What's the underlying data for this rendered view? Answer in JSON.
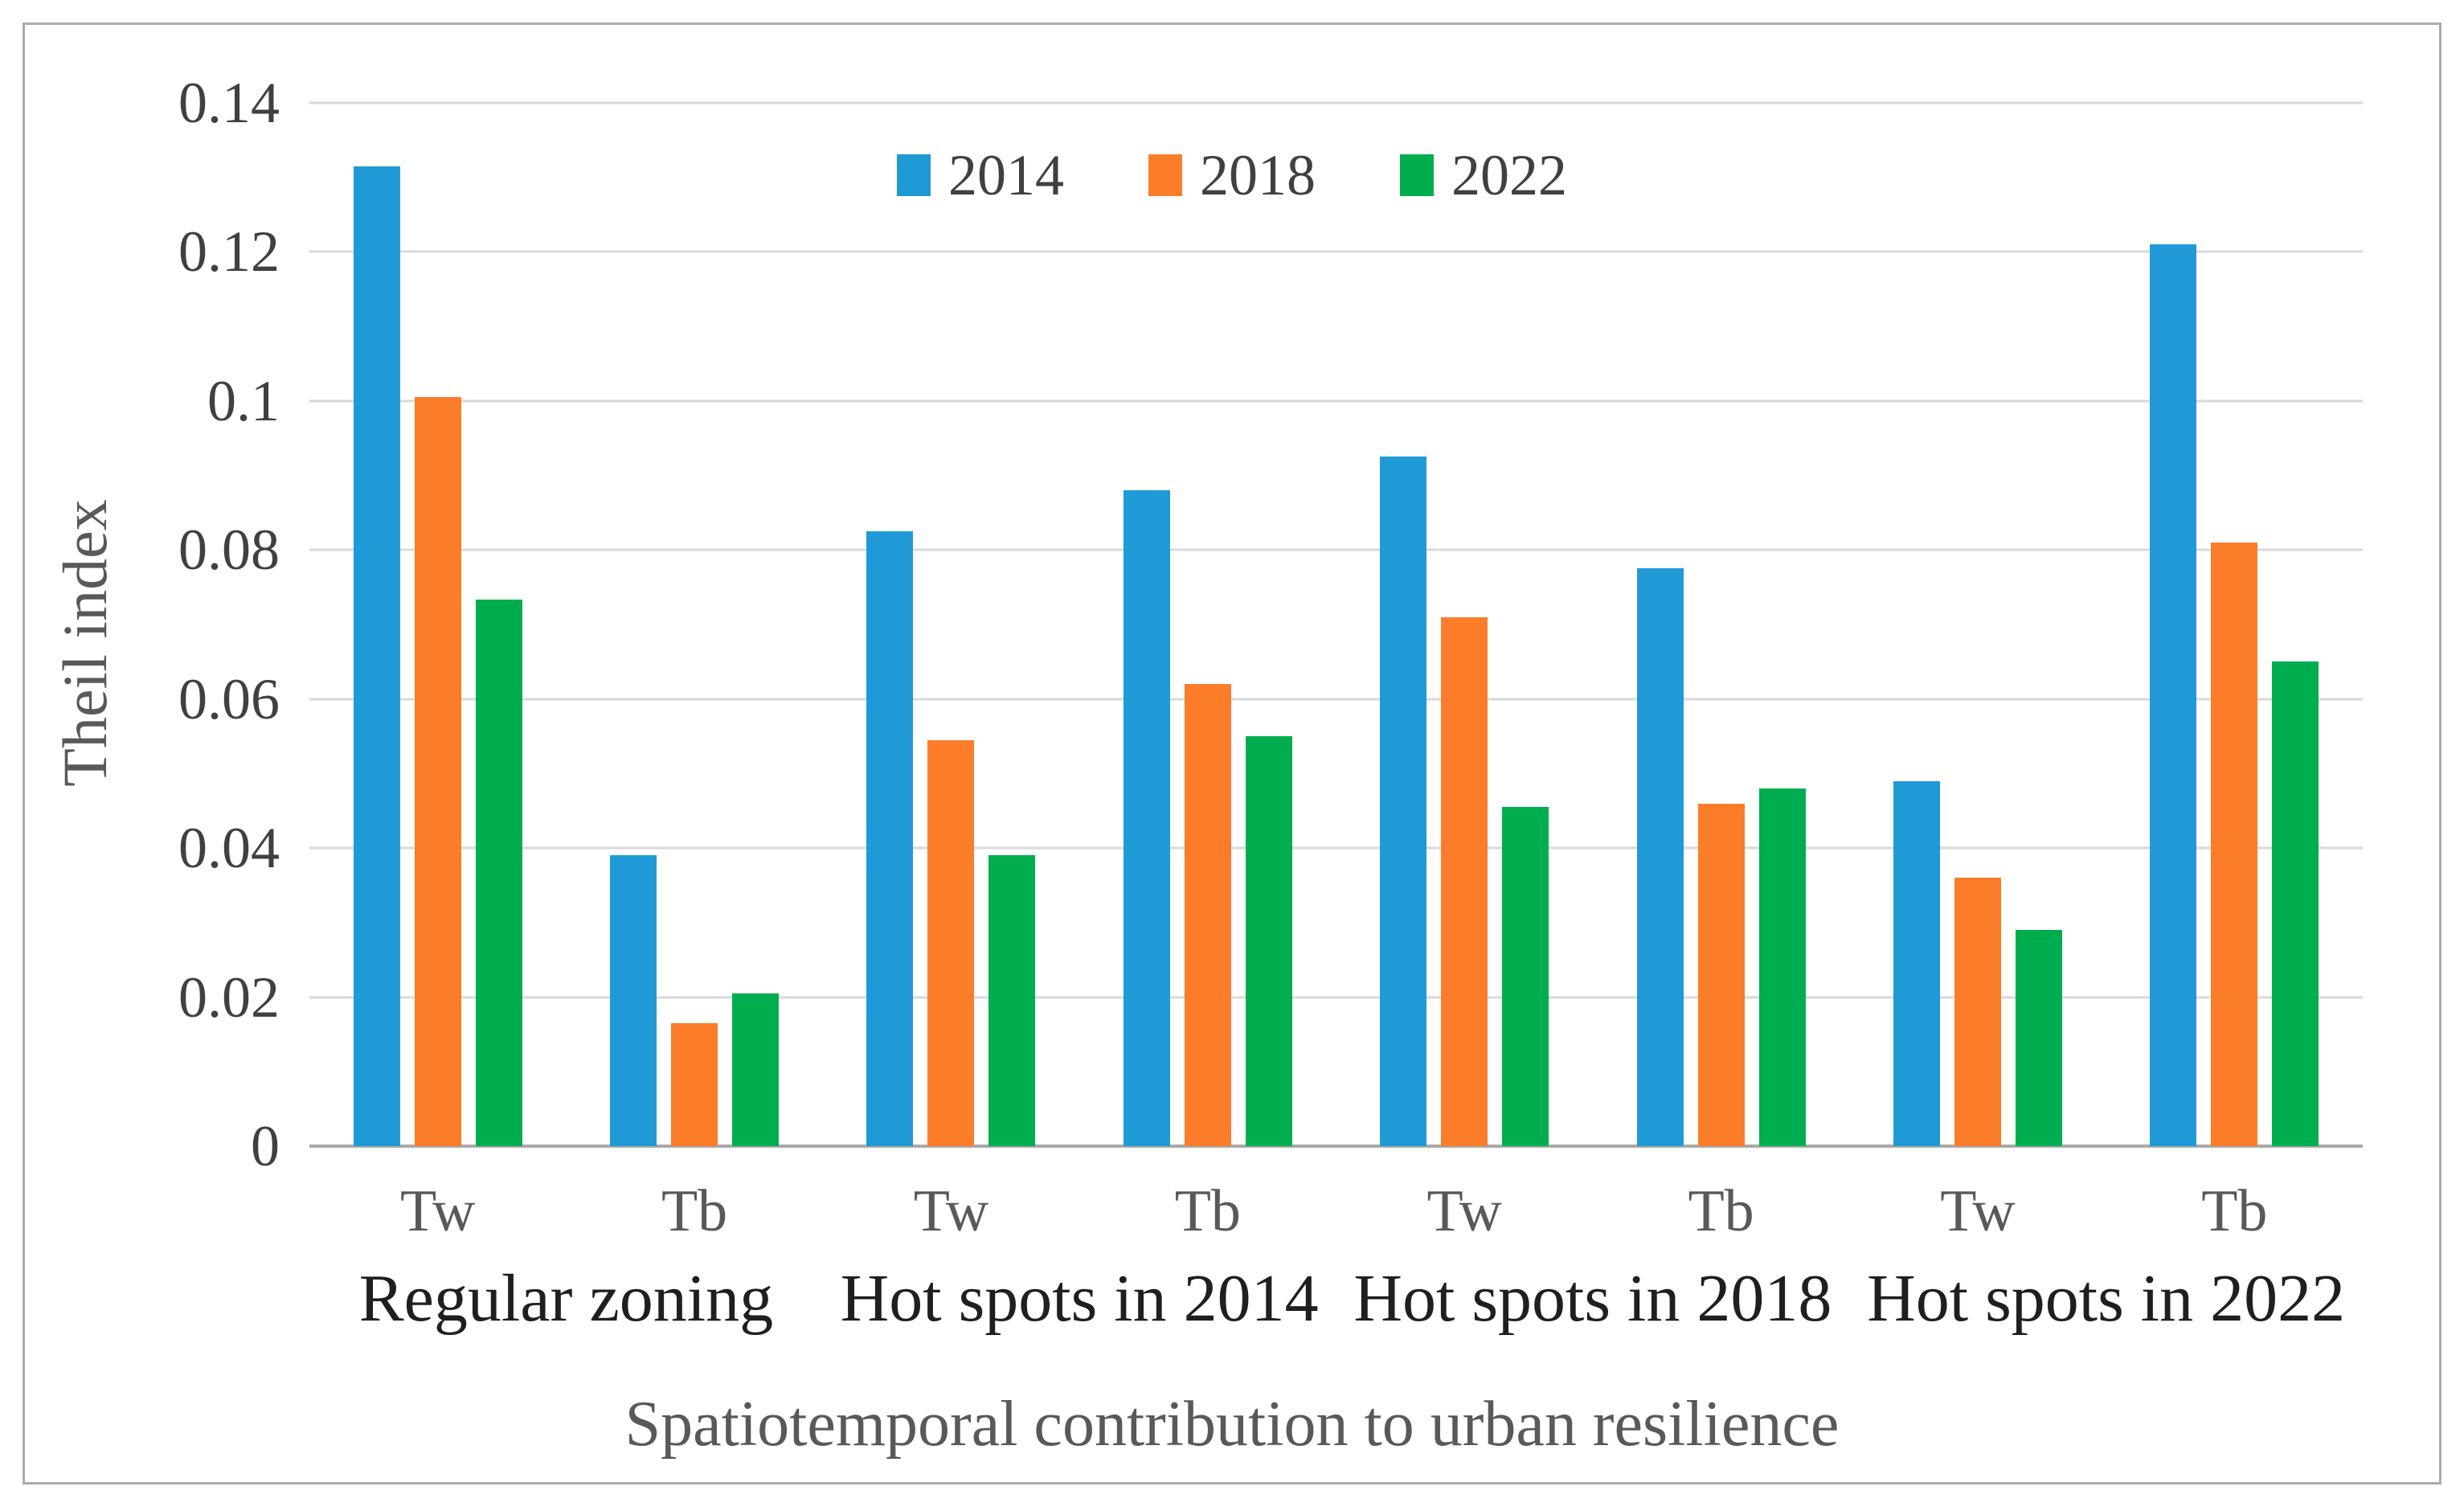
{
  "chart_data": {
    "type": "bar",
    "title": "",
    "ylabel": "Theil index",
    "xlabel": "Spatiotemporal contribution to urban resilience",
    "ylim": [
      0,
      0.14
    ],
    "ytick_values": [
      0.14,
      0.12,
      0.1,
      0.08,
      0.06,
      0.04,
      0.02,
      0
    ],
    "ytick_labels": [
      "0.14",
      "0.12",
      "0.1",
      "0.08",
      "0.06",
      "0.04",
      "0.02",
      "0"
    ],
    "grid": true,
    "legend_position": "top-center",
    "categories": [
      {
        "label": "Regular zoning",
        "subticks": [
          "Tw",
          "Tb"
        ]
      },
      {
        "label": "Hot spots in 2014",
        "subticks": [
          "Tw",
          "Tb"
        ]
      },
      {
        "label": "Hot spots in 2018",
        "subticks": [
          "Tw",
          "Tb"
        ]
      },
      {
        "label": "Hot spots in 2022",
        "subticks": [
          "Tw",
          "Tb"
        ]
      }
    ],
    "cluster_order": [
      "Regular zoning Tw",
      "Regular zoning Tb",
      "Hot spots in 2014 Tw",
      "Hot spots in 2014 Tb",
      "Hot spots in 2018 Tw",
      "Hot spots in 2018 Tb",
      "Hot spots in 2022 Tw",
      "Hot spots in 2022 Tb"
    ],
    "series": [
      {
        "name": "2014",
        "color": "#1f9ad7",
        "values": [
          0.1315,
          0.039,
          0.0825,
          0.088,
          0.0925,
          0.0775,
          0.049,
          0.121
        ]
      },
      {
        "name": "2018",
        "color": "#fb7d2a",
        "values": [
          0.1005,
          0.0165,
          0.0545,
          0.062,
          0.071,
          0.046,
          0.036,
          0.081
        ]
      },
      {
        "name": "2022",
        "color": "#00ad4f",
        "values": [
          0.0733,
          0.0205,
          0.039,
          0.055,
          0.0455,
          0.048,
          0.029,
          0.065
        ]
      }
    ]
  },
  "colors": {
    "gridline": "#d9d9d9",
    "baseline": "#a9a9a9",
    "frame": "#acacac",
    "ytick_text": "#404040",
    "subtick_text": "#595959",
    "category_text": "#1f1f1f",
    "axis_title_text": "#595959",
    "legend_text": "#404040"
  }
}
